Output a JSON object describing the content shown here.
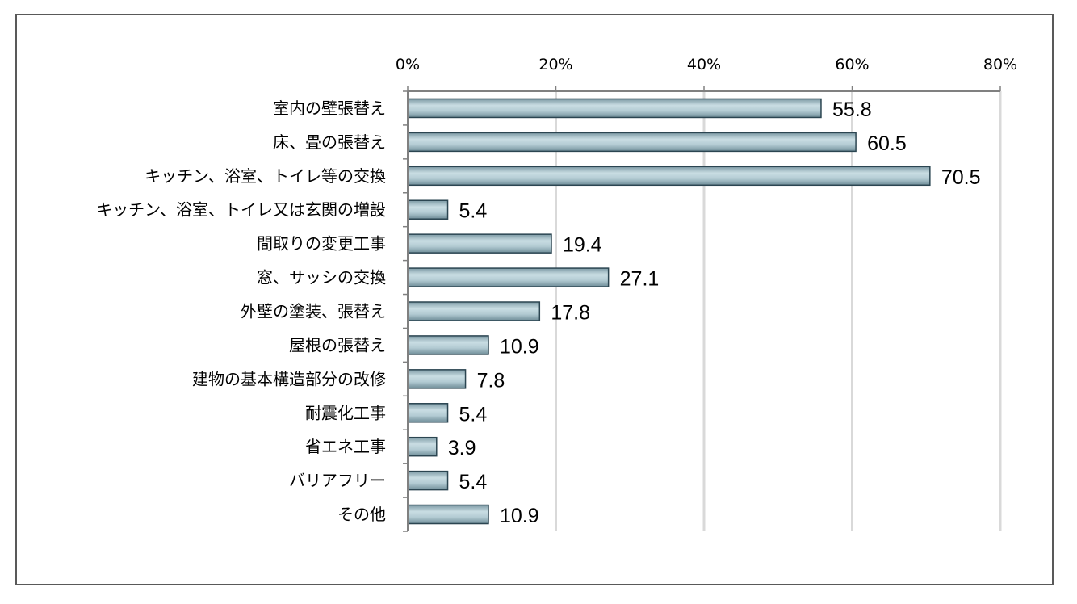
{
  "chart_data": {
    "type": "bar",
    "orientation": "horizontal",
    "title": "",
    "xlabel": "",
    "ylabel": "",
    "xlim": [
      0,
      80
    ],
    "x_ticks": [
      0,
      20,
      40,
      60,
      80
    ],
    "x_tick_labels": [
      "0%",
      "20%",
      "40%",
      "60%",
      "80%"
    ],
    "grid": true,
    "legend": "none",
    "bar_color": "#9fbcc6",
    "bar_edge_color": "#2b4551",
    "grid_color": "#d9d9d9",
    "categories": [
      "室内の壁張替え",
      "床、畳の張替え",
      "キッチン、浴室、トイレ等の交換",
      "キッチン、浴室、トイレ又は玄関の増設",
      "間取りの変更工事",
      "窓、サッシの交換",
      "外壁の塗装、張替え",
      "屋根の張替え",
      "建物の基本構造部分の改修",
      "耐震化工事",
      "省エネ工事",
      "バリアフリー",
      "その他"
    ],
    "values": [
      55.8,
      60.5,
      70.5,
      5.4,
      19.4,
      27.1,
      17.8,
      10.9,
      7.8,
      5.4,
      3.9,
      5.4,
      10.9
    ],
    "value_labels": [
      "55.8",
      "60.5",
      "70.5",
      "5.4",
      "19.4",
      "27.1",
      "17.8",
      "10.9",
      "7.8",
      "5.4",
      "3.9",
      "5.4",
      "10.9"
    ]
  }
}
